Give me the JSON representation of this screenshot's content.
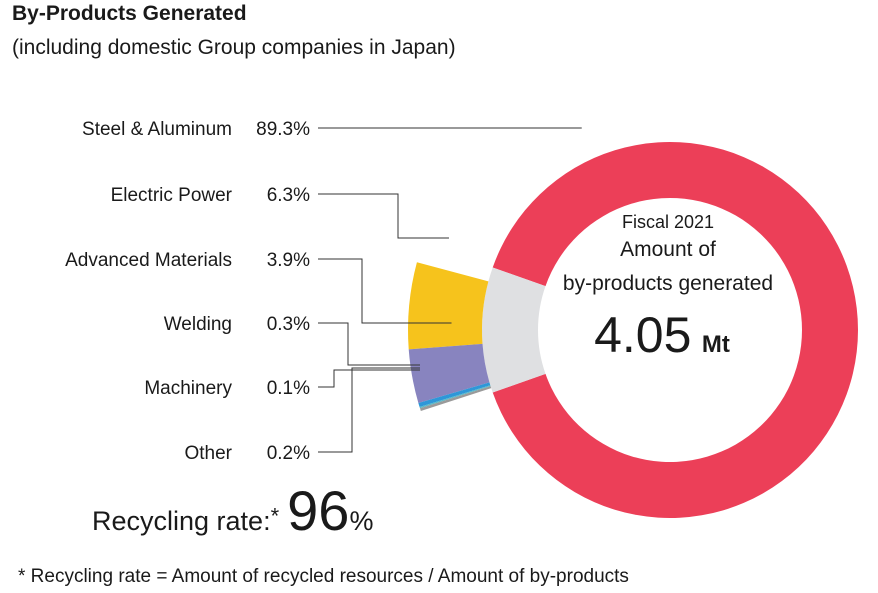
{
  "header": {
    "title": "By-Products Generated",
    "subtitle": "(including domestic Group companies in Japan)"
  },
  "center": {
    "line1": "Fiscal 2021",
    "line2": "Amount of",
    "line3": "by-products generated",
    "value": "4.05",
    "unit": "Mt"
  },
  "recycling": {
    "label": "Recycling rate:",
    "star": "*",
    "value": "96",
    "unit": "%"
  },
  "footnote": "* Recycling rate = Amount of recycled resources / Amount of by-products",
  "chart_data": {
    "type": "pie",
    "total": "4.05 Mt",
    "segments": [
      {
        "name": "Steel & Aluminum",
        "label": "89.3%",
        "value": 89.3,
        "color": "#ec3f58"
      },
      {
        "name": "Electric Power",
        "label": "6.3%",
        "value": 6.3,
        "color": "#f6c31c"
      },
      {
        "name": "Advanced Materials",
        "label": "3.9%",
        "value": 3.9,
        "color": "#8884bf"
      },
      {
        "name": "Welding",
        "label": "0.3%",
        "value": 0.3,
        "color": "#2e97d8"
      },
      {
        "name": "Machinery",
        "label": "0.1%",
        "value": 0.1,
        "color": "#57b9c7"
      },
      {
        "name": "Other",
        "label": "0.2%",
        "value": 0.2,
        "color": "#9a9a9a"
      }
    ],
    "colors": {
      "ring_gap": "#dfe0e2",
      "leader": "#333333"
    }
  }
}
